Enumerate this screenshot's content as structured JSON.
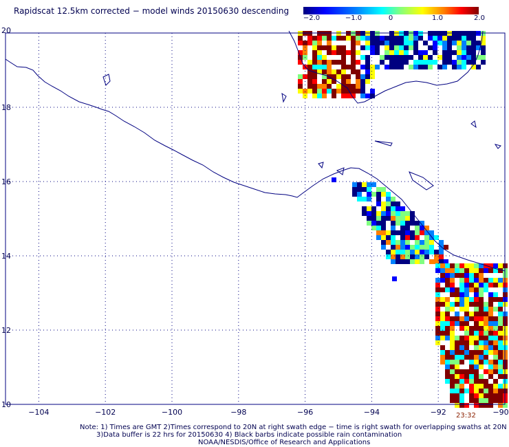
{
  "title": "Rapidscat 12.5km corrected − model winds 20150630 descending",
  "colorbar": {
    "labels": [
      "−2.0",
      "−1.0",
      "0",
      "1.0",
      "2.0"
    ],
    "values": [
      -2,
      -1,
      0,
      1,
      2
    ],
    "colors": [
      "#000080",
      "#0000ff",
      "#0080ff",
      "#00ffff",
      "#80ff80",
      "#ffff00",
      "#ff8000",
      "#ff0000",
      "#800000"
    ]
  },
  "axes": {
    "x_ticks": [
      "−104",
      "−102",
      "−100",
      "−98",
      "−96",
      "−94",
      "−92",
      "−90"
    ],
    "x_values": [
      -104,
      -102,
      -100,
      -98,
      -96,
      -94,
      -92,
      -90
    ],
    "y_ticks": [
      "20",
      "18",
      "16",
      "14",
      "12",
      "10"
    ],
    "y_values": [
      20,
      18,
      16,
      14,
      12,
      10
    ],
    "lon_range": [
      -105,
      -90
    ],
    "lat_range": [
      10,
      20
    ],
    "grid": true
  },
  "timestamp": "23:32",
  "notes": [
    "Note: 1) Times are GMT 2)Times correspond to 20N at right swath edge − time is right swath for overlapping swaths at 20N",
    "3)Data buffer is 22 hrs for 20150630 4) Black barbs indicate possible rain contamination",
    "NOAA/NESDIS/Office of Research and Applications"
  ]
}
